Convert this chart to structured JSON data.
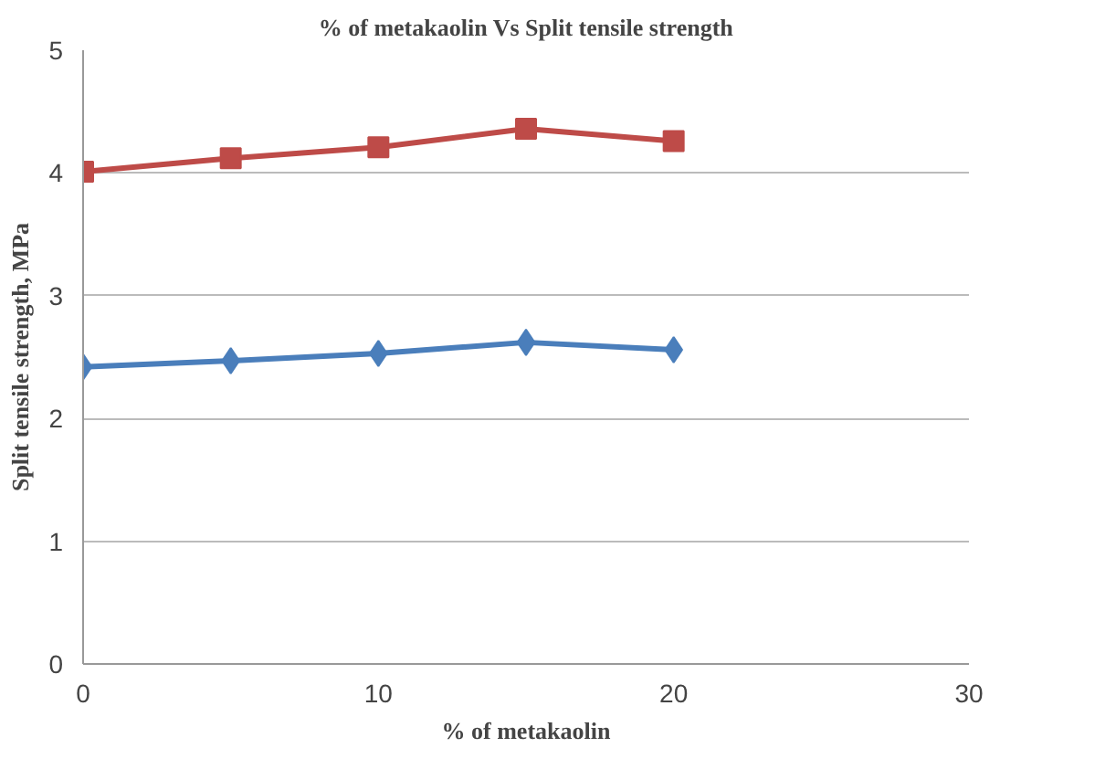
{
  "chart_data": {
    "type": "line",
    "title": "% of metakaolin Vs Split tensile strength",
    "xlabel": "% of metakaolin",
    "ylabel": "Split tensile strength, MPa",
    "x": [
      0,
      5,
      10,
      15,
      20
    ],
    "series": [
      {
        "color": "#4a7ebb",
        "values": [
          2.42,
          2.47,
          2.53,
          2.62,
          2.56
        ],
        "marker": "diamond"
      },
      {
        "color": "#be4b48",
        "values": [
          4.01,
          4.12,
          4.21,
          4.36,
          4.26
        ],
        "marker": "square"
      }
    ],
    "xlim": [
      0,
      30
    ],
    "xticks": [
      0,
      10,
      20,
      30
    ],
    "ylim": [
      0,
      5
    ],
    "yticks": [
      0,
      1,
      2,
      3,
      4,
      5
    ],
    "grid": "y"
  }
}
